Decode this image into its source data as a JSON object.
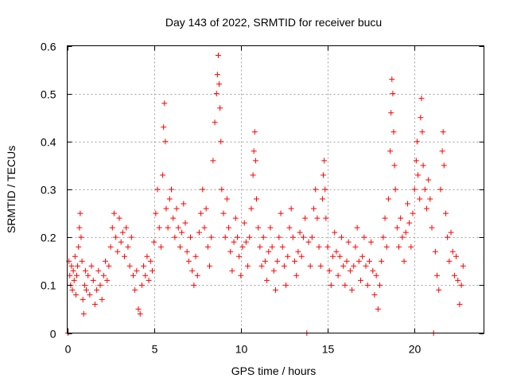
{
  "chart_data": {
    "type": "scatter",
    "title": "Day 143 of 2022, SRMTID for receiver bucu",
    "xlabel": "GPS time / hours",
    "ylabel": "SRMTID / TECUs",
    "xlim": [
      0,
      24
    ],
    "ylim": [
      0,
      0.6
    ],
    "x_ticks": [
      0,
      5,
      10,
      15,
      20
    ],
    "x_tick_labels": [
      "0",
      "5",
      "10",
      "15",
      "20"
    ],
    "y_ticks": [
      0,
      0.1,
      0.2,
      0.3,
      0.4,
      0.5,
      0.6
    ],
    "y_tick_labels": [
      "0",
      "0.1",
      "0.2",
      "0.3",
      "0.4",
      "0.5",
      "0.6"
    ],
    "grid": true,
    "marker": "+",
    "series_color": "#ff0000",
    "series": [
      {
        "name": "SRMTID",
        "points": [
          [
            0.05,
            0.0
          ],
          [
            0.1,
            0.15
          ],
          [
            0.15,
            0.12
          ],
          [
            0.2,
            0.1
          ],
          [
            0.25,
            0.14
          ],
          [
            0.3,
            0.09
          ],
          [
            0.35,
            0.13
          ],
          [
            0.4,
            0.11
          ],
          [
            0.45,
            0.16
          ],
          [
            0.5,
            0.08
          ],
          [
            0.55,
            0.12
          ],
          [
            0.6,
            0.14
          ],
          [
            0.65,
            0.18
          ],
          [
            0.7,
            0.22
          ],
          [
            0.75,
            0.25
          ],
          [
            0.8,
            0.2
          ],
          [
            0.85,
            0.15
          ],
          [
            0.9,
            0.07
          ],
          [
            0.95,
            0.04
          ],
          [
            1.0,
            0.1
          ],
          [
            1.05,
            0.13
          ],
          [
            1.1,
            0.09
          ],
          [
            1.2,
            0.12
          ],
          [
            1.3,
            0.08
          ],
          [
            1.4,
            0.14
          ],
          [
            1.5,
            0.11
          ],
          [
            1.6,
            0.06
          ],
          [
            1.7,
            0.09
          ],
          [
            1.8,
            0.13
          ],
          [
            1.9,
            0.1
          ],
          [
            2.0,
            0.07
          ],
          [
            2.1,
            0.12
          ],
          [
            2.2,
            0.15
          ],
          [
            2.3,
            0.11
          ],
          [
            2.4,
            0.14
          ],
          [
            2.5,
            0.18
          ],
          [
            2.6,
            0.22
          ],
          [
            2.7,
            0.25
          ],
          [
            2.8,
            0.2
          ],
          [
            2.9,
            0.17
          ],
          [
            3.0,
            0.24
          ],
          [
            3.1,
            0.19
          ],
          [
            3.2,
            0.21
          ],
          [
            3.3,
            0.16
          ],
          [
            3.4,
            0.22
          ],
          [
            3.5,
            0.18
          ],
          [
            3.6,
            0.14
          ],
          [
            3.7,
            0.2
          ],
          [
            3.8,
            0.12
          ],
          [
            3.9,
            0.09
          ],
          [
            4.0,
            0.13
          ],
          [
            4.1,
            0.05
          ],
          [
            4.2,
            0.04
          ],
          [
            4.3,
            0.1
          ],
          [
            4.4,
            0.14
          ],
          [
            4.5,
            0.12
          ],
          [
            4.6,
            0.16
          ],
          [
            4.7,
            0.11
          ],
          [
            4.8,
            0.15
          ],
          [
            4.9,
            0.13
          ],
          [
            5.0,
            0.19
          ],
          [
            5.1,
            0.25
          ],
          [
            5.2,
            0.3
          ],
          [
            5.3,
            0.22
          ],
          [
            5.4,
            0.18
          ],
          [
            5.5,
            0.33
          ],
          [
            5.55,
            0.43
          ],
          [
            5.6,
            0.48
          ],
          [
            5.65,
            0.4
          ],
          [
            5.7,
            0.26
          ],
          [
            5.8,
            0.22
          ],
          [
            5.9,
            0.28
          ],
          [
            6.0,
            0.3
          ],
          [
            6.1,
            0.24
          ],
          [
            6.2,
            0.2
          ],
          [
            6.3,
            0.26
          ],
          [
            6.4,
            0.22
          ],
          [
            6.5,
            0.18
          ],
          [
            6.6,
            0.21
          ],
          [
            6.7,
            0.27
          ],
          [
            6.8,
            0.23
          ],
          [
            6.9,
            0.17
          ],
          [
            7.0,
            0.15
          ],
          [
            7.1,
            0.2
          ],
          [
            7.2,
            0.13
          ],
          [
            7.3,
            0.1
          ],
          [
            7.4,
            0.16
          ],
          [
            7.5,
            0.12
          ],
          [
            7.6,
            0.21
          ],
          [
            7.7,
            0.25
          ],
          [
            7.8,
            0.3
          ],
          [
            7.9,
            0.22
          ],
          [
            8.0,
            0.26
          ],
          [
            8.1,
            0.18
          ],
          [
            8.2,
            0.14
          ],
          [
            8.3,
            0.2
          ],
          [
            8.4,
            0.36
          ],
          [
            8.5,
            0.44
          ],
          [
            8.6,
            0.5
          ],
          [
            8.65,
            0.54
          ],
          [
            8.7,
            0.58
          ],
          [
            8.75,
            0.52
          ],
          [
            8.8,
            0.47
          ],
          [
            8.85,
            0.4
          ],
          [
            8.9,
            0.3
          ],
          [
            9.0,
            0.25
          ],
          [
            9.1,
            0.2
          ],
          [
            9.2,
            0.28
          ],
          [
            9.3,
            0.22
          ],
          [
            9.4,
            0.17
          ],
          [
            9.5,
            0.13
          ],
          [
            9.6,
            0.19
          ],
          [
            9.7,
            0.24
          ],
          [
            9.8,
            0.2
          ],
          [
            9.9,
            0.16
          ],
          [
            10.0,
            0.12
          ],
          [
            10.1,
            0.18
          ],
          [
            10.2,
            0.23
          ],
          [
            10.3,
            0.19
          ],
          [
            10.4,
            0.14
          ],
          [
            10.5,
            0.2
          ],
          [
            10.6,
            0.26
          ],
          [
            10.7,
            0.33
          ],
          [
            10.75,
            0.38
          ],
          [
            10.8,
            0.42
          ],
          [
            10.85,
            0.36
          ],
          [
            10.9,
            0.28
          ],
          [
            11.0,
            0.22
          ],
          [
            11.1,
            0.18
          ],
          [
            11.2,
            0.14
          ],
          [
            11.3,
            0.2
          ],
          [
            11.4,
            0.15
          ],
          [
            11.5,
            0.11
          ],
          [
            11.6,
            0.17
          ],
          [
            11.7,
            0.22
          ],
          [
            11.8,
            0.18
          ],
          [
            11.9,
            0.13
          ],
          [
            12.0,
            0.09
          ],
          [
            12.1,
            0.15
          ],
          [
            12.2,
            0.2
          ],
          [
            12.3,
            0.25
          ],
          [
            12.4,
            0.18
          ],
          [
            12.5,
            0.14
          ],
          [
            12.6,
            0.1
          ],
          [
            12.7,
            0.16
          ],
          [
            12.8,
            0.22
          ],
          [
            12.9,
            0.26
          ],
          [
            13.0,
            0.2
          ],
          [
            13.1,
            0.15
          ],
          [
            13.2,
            0.12
          ],
          [
            13.3,
            0.17
          ],
          [
            13.4,
            0.21
          ],
          [
            13.5,
            0.16
          ],
          [
            13.6,
            0.2
          ],
          [
            13.7,
            0.24
          ],
          [
            13.8,
            0.0
          ],
          [
            13.9,
            0.19
          ],
          [
            14.0,
            0.14
          ],
          [
            14.1,
            0.2
          ],
          [
            14.2,
            0.26
          ],
          [
            14.3,
            0.3
          ],
          [
            14.4,
            0.24
          ],
          [
            14.5,
            0.18
          ],
          [
            14.6,
            0.14
          ],
          [
            14.7,
            0.28
          ],
          [
            14.75,
            0.33
          ],
          [
            14.8,
            0.36
          ],
          [
            14.85,
            0.3
          ],
          [
            14.9,
            0.24
          ],
          [
            15.0,
            0.18
          ],
          [
            15.1,
            0.13
          ],
          [
            15.2,
            0.1
          ],
          [
            15.3,
            0.16
          ],
          [
            15.4,
            0.21
          ],
          [
            15.5,
            0.17
          ],
          [
            15.6,
            0.12
          ],
          [
            15.7,
            0.16
          ],
          [
            15.8,
            0.2
          ],
          [
            15.9,
            0.14
          ],
          [
            16.0,
            0.1
          ],
          [
            16.1,
            0.15
          ],
          [
            16.2,
            0.19
          ],
          [
            16.3,
            0.13
          ],
          [
            16.4,
            0.09
          ],
          [
            16.5,
            0.14
          ],
          [
            16.6,
            0.18
          ],
          [
            16.7,
            0.22
          ],
          [
            16.8,
            0.15
          ],
          [
            16.9,
            0.11
          ],
          [
            17.0,
            0.16
          ],
          [
            17.1,
            0.2
          ],
          [
            17.2,
            0.14
          ],
          [
            17.3,
            0.1
          ],
          [
            17.4,
            0.15
          ],
          [
            17.5,
            0.19
          ],
          [
            17.6,
            0.13
          ],
          [
            17.7,
            0.08
          ],
          [
            17.8,
            0.12
          ],
          [
            17.9,
            0.05
          ],
          [
            18.0,
            0.1
          ],
          [
            18.1,
            0.15
          ],
          [
            18.2,
            0.2
          ],
          [
            18.3,
            0.24
          ],
          [
            18.4,
            0.18
          ],
          [
            18.5,
            0.28
          ],
          [
            18.6,
            0.38
          ],
          [
            18.65,
            0.46
          ],
          [
            18.7,
            0.53
          ],
          [
            18.75,
            0.5
          ],
          [
            18.8,
            0.42
          ],
          [
            18.85,
            0.35
          ],
          [
            18.9,
            0.3
          ],
          [
            19.0,
            0.22
          ],
          [
            19.1,
            0.18
          ],
          [
            19.2,
            0.24
          ],
          [
            19.3,
            0.2
          ],
          [
            19.4,
            0.15
          ],
          [
            19.5,
            0.21
          ],
          [
            19.6,
            0.27
          ],
          [
            19.7,
            0.23
          ],
          [
            19.8,
            0.18
          ],
          [
            19.9,
            0.25
          ],
          [
            20.0,
            0.3
          ],
          [
            20.1,
            0.36
          ],
          [
            20.15,
            0.4
          ],
          [
            20.2,
            0.33
          ],
          [
            20.3,
            0.28
          ],
          [
            20.35,
            0.45
          ],
          [
            20.4,
            0.49
          ],
          [
            20.45,
            0.42
          ],
          [
            20.5,
            0.35
          ],
          [
            20.6,
            0.3
          ],
          [
            20.7,
            0.26
          ],
          [
            20.8,
            0.32
          ],
          [
            20.9,
            0.28
          ],
          [
            21.0,
            0.22
          ],
          [
            21.1,
            0.0
          ],
          [
            21.2,
            0.17
          ],
          [
            21.3,
            0.12
          ],
          [
            21.4,
            0.09
          ],
          [
            21.5,
            0.3
          ],
          [
            21.6,
            0.38
          ],
          [
            21.65,
            0.42
          ],
          [
            21.7,
            0.35
          ],
          [
            21.8,
            0.25
          ],
          [
            21.9,
            0.2
          ],
          [
            22.0,
            0.15
          ],
          [
            22.1,
            0.21
          ],
          [
            22.2,
            0.17
          ],
          [
            22.3,
            0.12
          ],
          [
            22.4,
            0.16
          ],
          [
            22.5,
            0.11
          ],
          [
            22.6,
            0.06
          ],
          [
            22.7,
            0.1
          ],
          [
            22.8,
            0.14
          ]
        ]
      }
    ]
  }
}
